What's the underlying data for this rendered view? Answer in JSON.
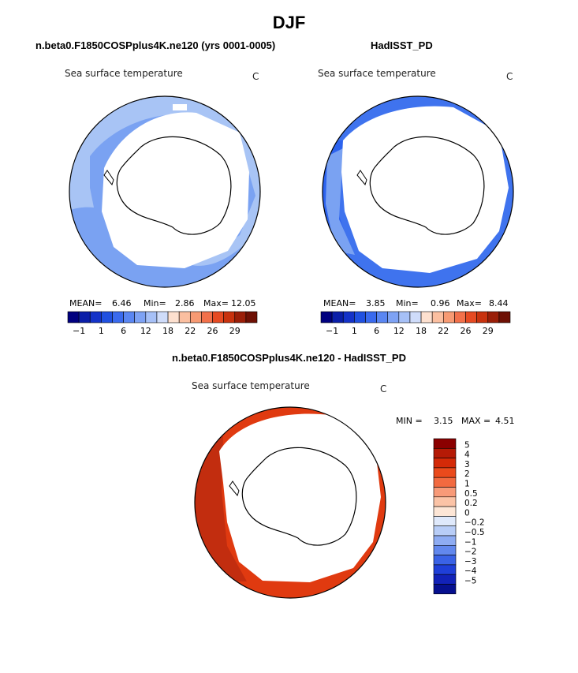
{
  "title": "DJF",
  "colors": {
    "ocean_light": "#a8c4f5",
    "ocean_mid": "#7aa2f2",
    "ocean_blue": "#2d63ee",
    "diff_red": "#e03a10",
    "diff_dark": "#c22d0f",
    "land": "#ffffff"
  },
  "chart_data": [
    {
      "type": "heatmap",
      "panel_title": "n.beta0.F1850COSPplus4K.ne120 (yrs 0001-0005)",
      "variable_label": "Sea surface temperature",
      "units": "C",
      "stats": {
        "mean_label": "MEAN=",
        "mean": "6.46",
        "min_label": "Min=",
        "min": "2.86",
        "max_label": "Max=",
        "max": "12.05"
      },
      "colorbar": {
        "colors": [
          "#00007f",
          "#0a1ea8",
          "#1432c8",
          "#2050e0",
          "#3a6aee",
          "#5a86f2",
          "#7ea2f4",
          "#a6c0f7",
          "#cfdcfa",
          "#fde0cf",
          "#fbbfa0",
          "#f79a73",
          "#f2704a",
          "#e64a22",
          "#c8320e",
          "#9a1e08",
          "#6e1004"
        ],
        "labels": [
          "-1",
          "1",
          "6",
          "12",
          "18",
          "22",
          "26",
          "29"
        ]
      }
    },
    {
      "type": "heatmap",
      "panel_title": "HadISST_PD",
      "variable_label": "Sea surface temperature",
      "units": "C",
      "stats": {
        "mean_label": "MEAN=",
        "mean": "3.85",
        "min_label": "Min=",
        "min": "0.96",
        "max_label": "Max=",
        "max": "8.44"
      },
      "colorbar": {
        "colors": [
          "#00007f",
          "#0a1ea8",
          "#1432c8",
          "#2050e0",
          "#3a6aee",
          "#5a86f2",
          "#7ea2f4",
          "#a6c0f7",
          "#cfdcfa",
          "#fde0cf",
          "#fbbfa0",
          "#f79a73",
          "#f2704a",
          "#e64a22",
          "#c8320e",
          "#9a1e08",
          "#6e1004"
        ],
        "labels": [
          "-1",
          "1",
          "6",
          "12",
          "18",
          "22",
          "26",
          "29"
        ]
      }
    },
    {
      "type": "heatmap",
      "panel_title": "n.beta0.F1850COSPplus4K.ne120 - HadISST_PD",
      "variable_label": "Sea surface temperature",
      "units": "C",
      "stats": {
        "min_label": "MIN =",
        "min": "3.15",
        "max_label": "MAX =",
        "max": "4.51"
      },
      "colorbar": {
        "colors": [
          "#8b0000",
          "#b51a06",
          "#d42a08",
          "#ea4a1c",
          "#f26a40",
          "#f89a78",
          "#fbc3a6",
          "#fde6d6",
          "#dfe9fb",
          "#b8cdf7",
          "#8eacf3",
          "#6288ee",
          "#3a62e6",
          "#1f3fd8",
          "#1222b8",
          "#06108f"
        ],
        "labels": [
          "5",
          "4",
          "3",
          "2",
          "1",
          "0.5",
          "0.2",
          "0",
          "-0.2",
          "-0.5",
          "-1",
          "-2",
          "-3",
          "-4",
          "-5"
        ]
      }
    }
  ]
}
